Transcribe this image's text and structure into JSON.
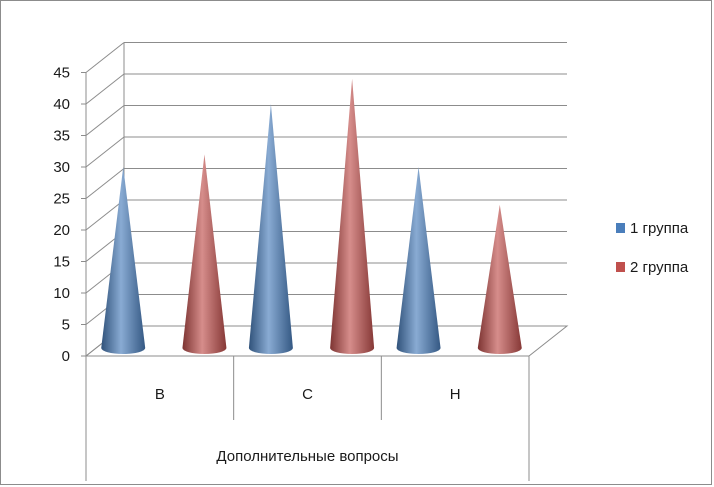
{
  "chart_data": {
    "type": "bar",
    "style": "3d-cone",
    "categories": [
      "B",
      "C",
      "H"
    ],
    "xlabel": "Дополнительные вопросы",
    "ylabel": "",
    "title": "",
    "ylim": [
      0,
      45
    ],
    "ytick_step": 5,
    "yticks": [
      "0",
      "5",
      "10",
      "15",
      "20",
      "25",
      "30",
      "35",
      "40",
      "45"
    ],
    "grid": true,
    "legend_position": "right",
    "series": [
      {
        "name": "1 группа",
        "values": [
          30,
          40,
          30
        ],
        "color": "#4a7ebb"
      },
      {
        "name": "2 группа",
        "values": [
          32,
          44,
          24
        ],
        "color": "#c0504d"
      }
    ]
  }
}
